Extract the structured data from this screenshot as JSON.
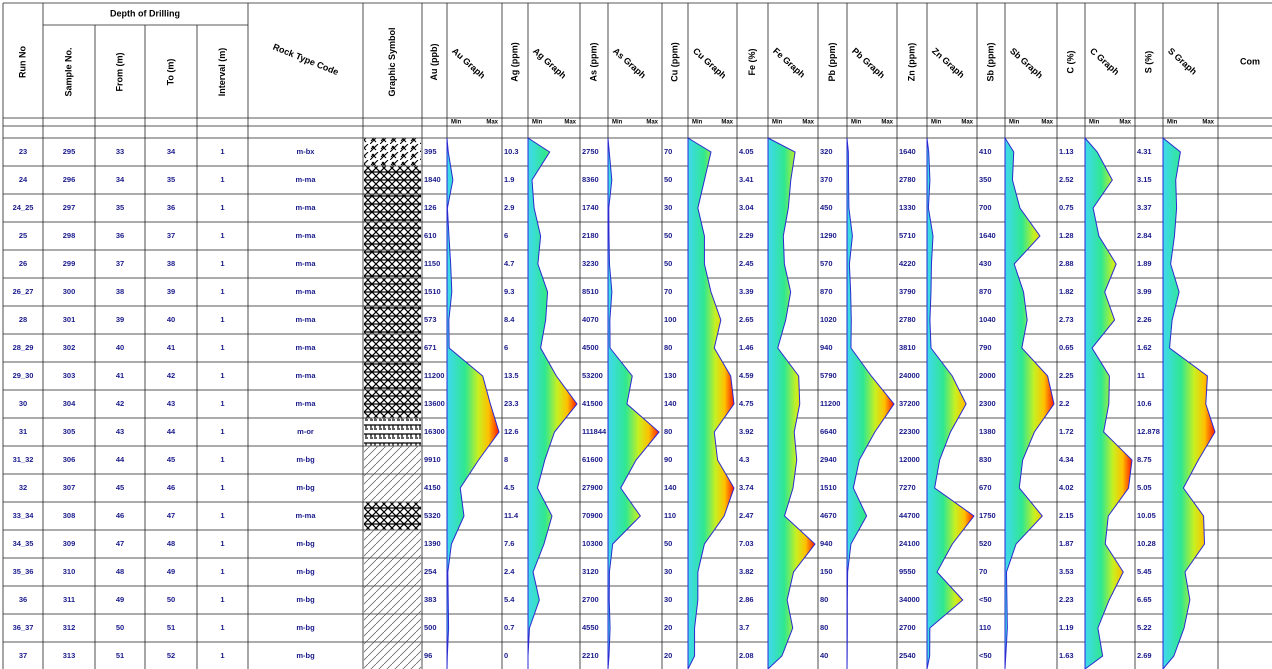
{
  "header": {
    "depth_group": "Depth of Drilling",
    "columns": [
      "Run No",
      "Sample No.",
      "From (m)",
      "To (m)",
      "Interval (m)",
      "Rock Type Code",
      "Graphic Symbol",
      "Au (ppb)",
      "Au Graph",
      "Ag (ppm)",
      "Ag Graph",
      "As (ppm)",
      "As Graph",
      "Cu (ppm)",
      "Cu Graph",
      "Fe (%)",
      "Fe Graph",
      "Pb (ppm)",
      "Pb Graph",
      "Zn (ppm)",
      "Zn Graph",
      "Sb (ppm)",
      "Sb Graph",
      "C (%)",
      "C Graph",
      "S (%)",
      "S Graph",
      "Com"
    ],
    "graph_scale": {
      "min": "Min",
      "max": "Max"
    }
  },
  "rows": [
    [
      "23",
      295,
      33,
      34,
      1,
      "m-bx",
      395,
      10.3,
      2750,
      70,
      4.05,
      320,
      1640,
      410,
      1.13,
      4.31
    ],
    [
      "24",
      296,
      34,
      35,
      1,
      "m-ma",
      1840,
      1.9,
      8360,
      50,
      3.41,
      370,
      2780,
      350,
      2.52,
      3.15
    ],
    [
      "24_25",
      297,
      35,
      36,
      1,
      "m-ma",
      126,
      2.9,
      1740,
      30,
      3.04,
      450,
      1330,
      700,
      0.75,
      3.37
    ],
    [
      "25",
      298,
      36,
      37,
      1,
      "m-ma",
      610,
      6,
      2180,
      50,
      2.29,
      1290,
      5710,
      1640,
      1.28,
      2.84
    ],
    [
      "26",
      299,
      37,
      38,
      1,
      "m-ma",
      1150,
      4.7,
      3230,
      50,
      2.45,
      570,
      4220,
      430,
      2.88,
      1.89
    ],
    [
      "26_27",
      300,
      38,
      39,
      1,
      "m-ma",
      1510,
      9.3,
      8510,
      70,
      3.39,
      870,
      3790,
      870,
      1.82,
      3.99
    ],
    [
      "28",
      301,
      39,
      40,
      1,
      "m-ma",
      573,
      8.4,
      4070,
      100,
      2.65,
      1020,
      2780,
      1040,
      2.73,
      2.26
    ],
    [
      "28_29",
      302,
      40,
      41,
      1,
      "m-ma",
      671,
      6,
      4500,
      80,
      1.46,
      940,
      3810,
      790,
      0.65,
      1.62
    ],
    [
      "29_30",
      303,
      41,
      42,
      1,
      "m-ma",
      11200,
      13.5,
      53200,
      130,
      4.59,
      5790,
      24000,
      2000,
      2.25,
      11
    ],
    [
      "30",
      304,
      42,
      43,
      1,
      "m-ma",
      13600,
      23.3,
      41500,
      140,
      4.75,
      11200,
      37200,
      2300,
      2.2,
      10.6
    ],
    [
      "31",
      305,
      43,
      44,
      1,
      "m-or",
      16300,
      12.6,
      111844,
      80,
      3.92,
      6640,
      22300,
      1380,
      1.72,
      12.878
    ],
    [
      "31_32",
      306,
      44,
      45,
      1,
      "m-bg",
      9910,
      8,
      61600,
      90,
      4.3,
      2940,
      12000,
      830,
      4.34,
      8.75
    ],
    [
      "32",
      307,
      45,
      46,
      1,
      "m-bg",
      4150,
      4.5,
      27900,
      140,
      3.74,
      1510,
      7270,
      670,
      4.02,
      5.05
    ],
    [
      "33_34",
      308,
      46,
      47,
      1,
      "m-ma",
      5320,
      11.4,
      70900,
      110,
      2.47,
      4670,
      44700,
      1750,
      2.15,
      10.05
    ],
    [
      "34_35",
      309,
      47,
      48,
      1,
      "m-bg",
      1390,
      7.6,
      10300,
      50,
      7.03,
      940,
      24100,
      520,
      1.87,
      10.28
    ],
    [
      "35_36",
      310,
      48,
      49,
      1,
      "m-bg",
      254,
      2.4,
      3120,
      30,
      3.82,
      150,
      9550,
      70,
      3.53,
      5.45
    ],
    [
      "36",
      311,
      49,
      50,
      1,
      "m-bg",
      383,
      5.4,
      2700,
      30,
      2.86,
      80,
      34000,
      "<50",
      2.23,
      6.65
    ],
    [
      "36_37",
      312,
      50,
      51,
      1,
      "m-bg",
      500,
      0.7,
      4550,
      20,
      3.7,
      80,
      2700,
      110,
      1.19,
      5.22
    ],
    [
      "37",
      313,
      51,
      52,
      1,
      "m-bg",
      96,
      0,
      2210,
      20,
      2.08,
      40,
      2540,
      "<50",
      1.63,
      2.69
    ]
  ]
}
